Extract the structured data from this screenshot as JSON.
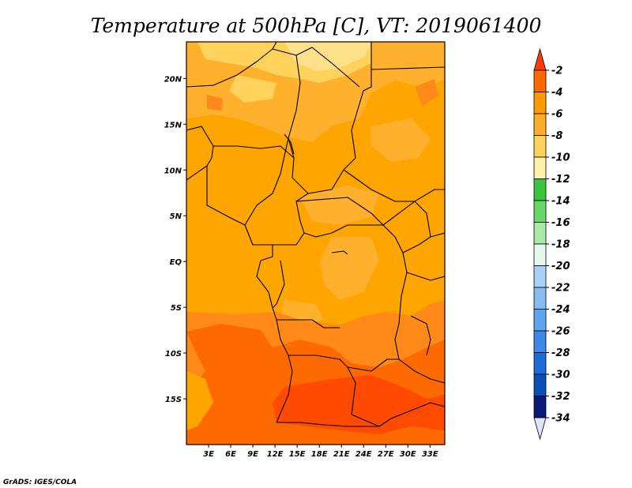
{
  "title": "Temperature at 500hPa [C], VT: 2019061400",
  "credit": "GrADS: IGES/COLA",
  "map": {
    "region": "Central Africa",
    "variable": "Temperature at 500hPa",
    "units": "C",
    "lon_range": [
      0,
      35
    ],
    "lat_range": [
      -20,
      24
    ],
    "x_ticks": [
      {
        "value": 3,
        "label": "3E"
      },
      {
        "value": 6,
        "label": "6E"
      },
      {
        "value": 9,
        "label": "9E"
      },
      {
        "value": 12,
        "label": "12E"
      },
      {
        "value": 15,
        "label": "15E"
      },
      {
        "value": 18,
        "label": "18E"
      },
      {
        "value": 21,
        "label": "21E"
      },
      {
        "value": 24,
        "label": "24E"
      },
      {
        "value": 27,
        "label": "27E"
      },
      {
        "value": 30,
        "label": "30E"
      },
      {
        "value": 33,
        "label": "33E"
      }
    ],
    "y_ticks": [
      {
        "value": 20,
        "label": "20N"
      },
      {
        "value": 15,
        "label": "15N"
      },
      {
        "value": 10,
        "label": "10N"
      },
      {
        "value": 5,
        "label": "5N"
      },
      {
        "value": 0,
        "label": "EQ"
      },
      {
        "value": -5,
        "label": "5S"
      },
      {
        "value": -10,
        "label": "10S"
      },
      {
        "value": -15,
        "label": "15S"
      }
    ]
  },
  "colorbar": {
    "labels": [
      "-2",
      "-4",
      "-6",
      "-8",
      "-10",
      "-12",
      "-14",
      "-16",
      "-18",
      "-20",
      "-22",
      "-24",
      "-26",
      "-28",
      "-30",
      "-32",
      "-34"
    ],
    "colors": [
      "#ff3d00",
      "#ff6a00",
      "#ff9900",
      "#ffae2a",
      "#ffd25c",
      "#fff2a8",
      "#3cc43c",
      "#68d868",
      "#a8eaa8",
      "#e4f8ec",
      "#a7d2f6",
      "#84bcf2",
      "#5ea6ee",
      "#3c8ae6",
      "#1e6cd8",
      "#0a4fb8",
      "#0b1a78",
      "#dde4f5"
    ]
  }
}
